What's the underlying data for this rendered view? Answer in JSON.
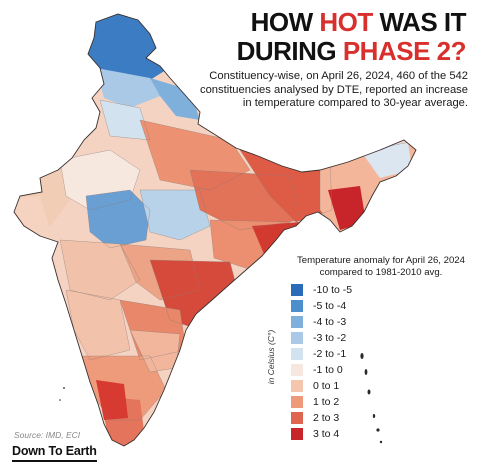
{
  "title": {
    "line1_pre": "HOW ",
    "line1_hot": "HOT",
    "line1_post": " WAS IT",
    "line2_pre": "DURING ",
    "line2_hot": "PHASE 2?"
  },
  "subtitle": "Constituency-wise, on April 26, 2024, 460 of the 542 constituencies analysed by DTE, reported an increase in temperature compared to 30-year average.",
  "legend": {
    "title": "Temperature anomaly for April 26, 2024 compared to 1981-2010 avg.",
    "unit_label": "in Celsius (C°)",
    "items": [
      {
        "label": "-10 to -5",
        "color": "#2b6cb8"
      },
      {
        "label": "-5 to -4",
        "color": "#4d8fcc"
      },
      {
        "label": "-4 to -3",
        "color": "#7fb0dc"
      },
      {
        "label": "-3 to -2",
        "color": "#a9c9e6"
      },
      {
        "label": "-2 to -1",
        "color": "#d2e2ef"
      },
      {
        "label": "-1 to 0",
        "color": "#f6e7df"
      },
      {
        "label": "0 to 1",
        "color": "#f5c5ad"
      },
      {
        "label": "1 to 2",
        "color": "#ee9a7a"
      },
      {
        "label": "2 to 3",
        "color": "#e0654f"
      },
      {
        "label": "3 to 4",
        "color": "#c8252a"
      }
    ]
  },
  "source": "Source: IMD, ECI",
  "brand": "Down To Earth"
}
